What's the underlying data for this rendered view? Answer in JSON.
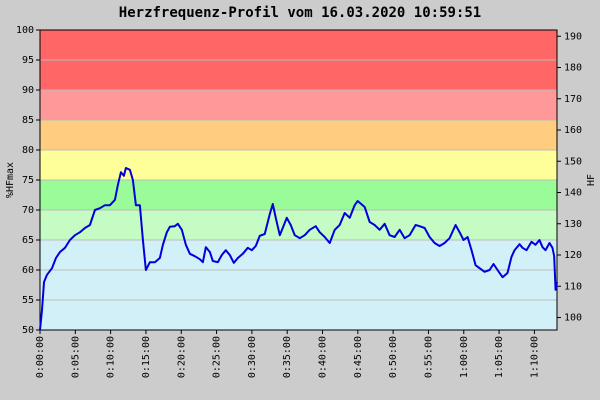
{
  "chart_data": {
    "type": "line",
    "title": "Herzfrequenz-Profil vom 16.03.2020 10:59:51",
    "y_label": "%HFmax",
    "y2_label": "HF",
    "color": "#0000dd",
    "grid": true,
    "xlim": [
      0,
      73.2
    ],
    "ylim": [
      50,
      100
    ],
    "y2lim": [
      96,
      192
    ],
    "yticks": [
      50,
      55,
      60,
      65,
      70,
      75,
      80,
      85,
      90,
      95,
      100
    ],
    "y2ticks": [
      100,
      110,
      120,
      130,
      140,
      150,
      160,
      170,
      180,
      190
    ],
    "xticks": [
      {
        "value": 0,
        "label": "0:00:00"
      },
      {
        "value": 5,
        "label": "0:05:00"
      },
      {
        "value": 10,
        "label": "0:10:00"
      },
      {
        "value": 15,
        "label": "0:15:00"
      },
      {
        "value": 20,
        "label": "0:20:00"
      },
      {
        "value": 25,
        "label": "0:25:00"
      },
      {
        "value": 30,
        "label": "0:30:00"
      },
      {
        "value": 35,
        "label": "0:35:00"
      },
      {
        "value": 40,
        "label": "0:40:00"
      },
      {
        "value": 45,
        "label": "0:45:00"
      },
      {
        "value": 50,
        "label": "0:50:00"
      },
      {
        "value": 55,
        "label": "0:55:00"
      },
      {
        "value": 60,
        "label": "1:00:00"
      },
      {
        "value": 65,
        "label": "1:05:00"
      },
      {
        "value": 70,
        "label": "1:10:00"
      }
    ],
    "zones": [
      {
        "from": 50,
        "to": 65,
        "color": "#d2f0f7"
      },
      {
        "from": 65,
        "to": 70,
        "color": "#c4fcc4"
      },
      {
        "from": 70,
        "to": 75,
        "color": "#99fc99"
      },
      {
        "from": 75,
        "to": 80,
        "color": "#ffff99"
      },
      {
        "from": 80,
        "to": 85,
        "color": "#ffcc80"
      },
      {
        "from": 85,
        "to": 90,
        "color": "#ff9999"
      },
      {
        "from": 90,
        "to": 100,
        "color": "#ff6666"
      }
    ],
    "x": [
      0,
      0.28,
      0.57,
      0.99,
      1.7,
      2.26,
      2.83,
      3.54,
      4.24,
      4.95,
      5.66,
      6.36,
      7.07,
      7.78,
      8.49,
      9.19,
      9.9,
      10.61,
      11.03,
      11.46,
      11.88,
      12.16,
      12.73,
      13.15,
      13.58,
      14.14,
      14.57,
      14.99,
      15.56,
      16.27,
      16.97,
      17.4,
      17.96,
      18.39,
      19.09,
      19.52,
      20.08,
      20.65,
      21.22,
      21.92,
      22.63,
      23.06,
      23.48,
      24.05,
      24.47,
      25.18,
      25.74,
      26.31,
      26.87,
      27.44,
      28.01,
      28.71,
      29.42,
      29.99,
      30.55,
      31.12,
      31.82,
      32.53,
      32.96,
      33.38,
      33.95,
      34.37,
      34.94,
      35.5,
      36.07,
      36.78,
      37.48,
      38.19,
      39.04,
      39.6,
      40.31,
      41.02,
      41.73,
      42.43,
      43.14,
      43.85,
      44.55,
      44.98,
      45.97,
      46.68,
      47.38,
      48.09,
      48.8,
      49.5,
      50.21,
      50.92,
      51.63,
      52.33,
      53.18,
      53.75,
      54.46,
      55.16,
      55.87,
      56.58,
      57.28,
      57.99,
      58.84,
      59.41,
      59.97,
      60.54,
      61.1,
      61.67,
      62.24,
      62.94,
      63.65,
      64.21,
      64.78,
      65.49,
      66.19,
      66.76,
      67.19,
      67.89,
      68.32,
      68.88,
      69.59,
      70.16,
      70.72,
      71.15,
      71.57,
      72.14,
      72.56,
      72.8,
      73.0,
      73.2
    ],
    "values": [
      50,
      53.3,
      58,
      59.2,
      60.3,
      62,
      63,
      63.7,
      65,
      65.8,
      66.3,
      67,
      67.5,
      70,
      70.3,
      70.8,
      70.8,
      71.7,
      74.2,
      76.3,
      75.7,
      77,
      76.7,
      75,
      70.8,
      70.8,
      65,
      60,
      61.3,
      61.3,
      62,
      64.2,
      66.3,
      67.2,
      67.3,
      67.7,
      66.7,
      64.2,
      62.7,
      62.3,
      61.8,
      61.3,
      63.8,
      63,
      61.5,
      61.3,
      62.5,
      63.3,
      62.5,
      61.2,
      62,
      62.7,
      63.7,
      63.3,
      64,
      65.7,
      66,
      69.3,
      71,
      68.7,
      65.8,
      67,
      68.7,
      67.5,
      65.8,
      65.3,
      65.8,
      66.7,
      67.3,
      66.3,
      65.5,
      64.5,
      66.7,
      67.5,
      69.5,
      68.7,
      70.8,
      71.5,
      70.5,
      68,
      67.5,
      66.7,
      67.7,
      65.8,
      65.5,
      66.7,
      65.3,
      65.8,
      67.5,
      67.3,
      67,
      65.5,
      64.5,
      64,
      64.5,
      65.3,
      67.5,
      66.3,
      65,
      65.5,
      63.3,
      60.8,
      60.3,
      59.7,
      60,
      61,
      60,
      58.8,
      59.5,
      62.2,
      63.3,
      64.3,
      63.7,
      63.3,
      64.7,
      64.2,
      65,
      63.8,
      63.3,
      64.5,
      63.7,
      62.3,
      56.7,
      58
    ]
  }
}
